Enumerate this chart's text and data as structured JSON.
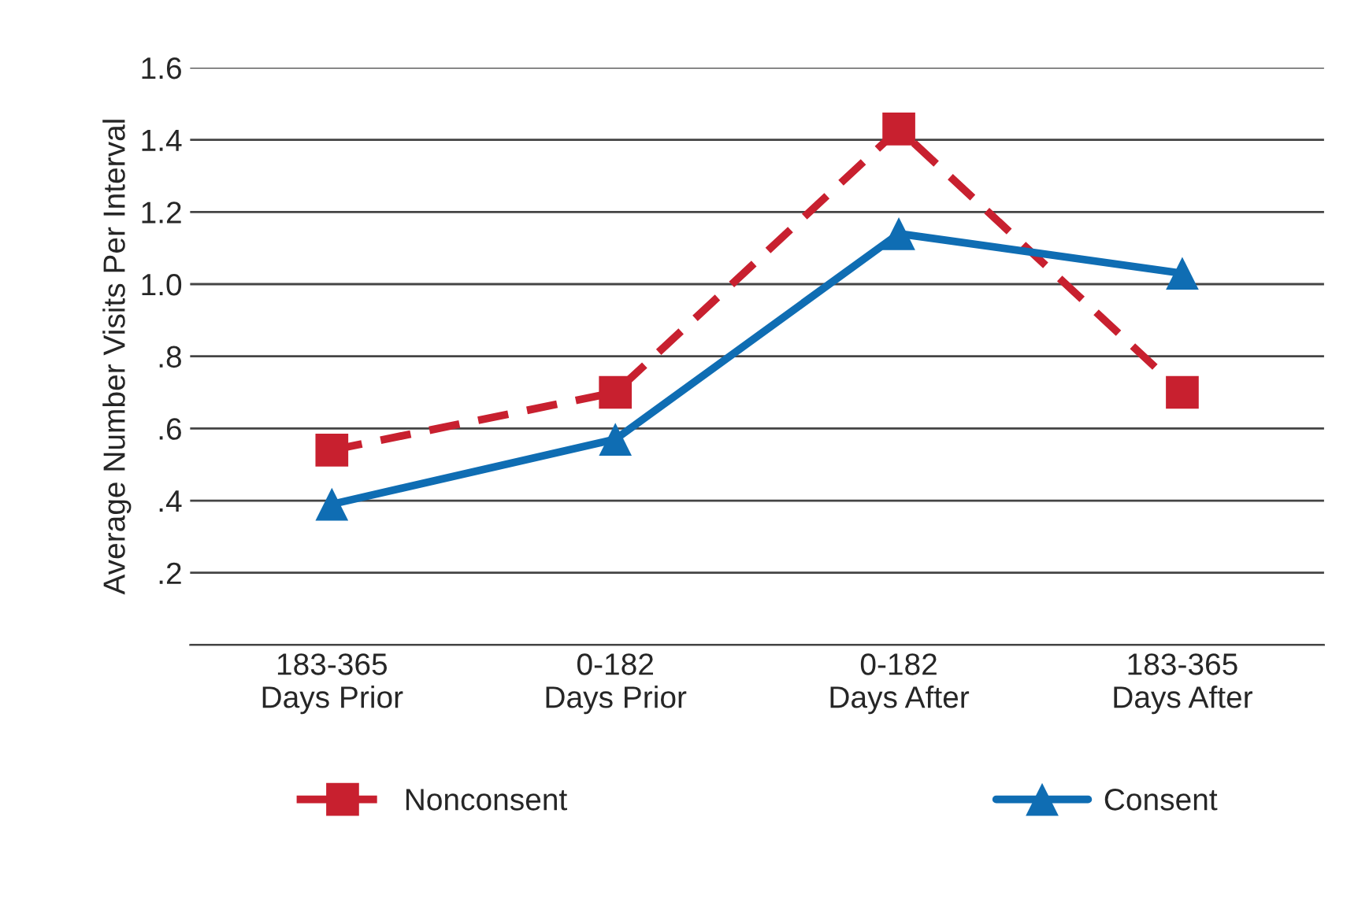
{
  "chart_data": {
    "type": "line",
    "ylabel": "Average Number Visits Per Interval",
    "categories": [
      "183-365\nDays Prior",
      "0-182\nDays Prior",
      "0-182\nDays After",
      "183-365\nDays After"
    ],
    "series": [
      {
        "name": "Nonconsent",
        "color": "#c8202f",
        "values": [
          0.54,
          0.7,
          1.43,
          0.7
        ],
        "marker": "square",
        "line_style": "dashed"
      },
      {
        "name": "Consent",
        "color": "#0f6db3",
        "values": [
          0.39,
          0.57,
          1.14,
          1.03
        ],
        "marker": "triangle",
        "line_style": "solid"
      }
    ],
    "ylim": [
      0,
      1.6
    ],
    "yticks": [
      {
        "value": 0,
        "label": null
      },
      {
        "value": 0.2,
        "label": ".2"
      },
      {
        "value": 0.4,
        "label": ".4"
      },
      {
        "value": 0.6,
        "label": ".6"
      },
      {
        "value": 0.8,
        "label": ".8"
      },
      {
        "value": 1.0,
        "label": "1.0"
      },
      {
        "value": 1.2,
        "label": "1.2"
      },
      {
        "value": 1.4,
        "label": "1.4"
      },
      {
        "value": 1.6,
        "label": "1.6"
      }
    ],
    "grid": "y",
    "legend": "bottom"
  }
}
